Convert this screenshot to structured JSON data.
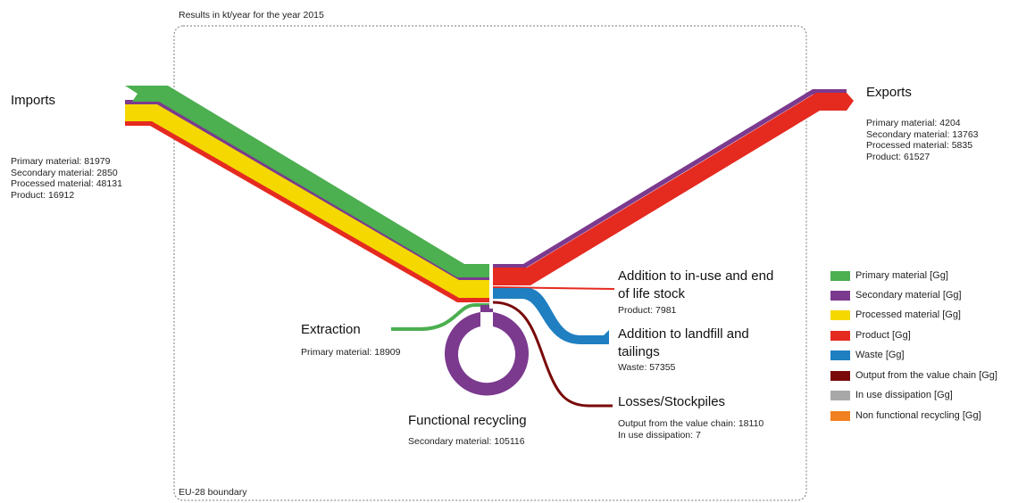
{
  "header": {
    "results_note": "Results in kt/year for the year 2015"
  },
  "boundary": {
    "label": "EU-28 boundary"
  },
  "colors": {
    "primary": "#4caf50",
    "secondary": "#7b3a8e",
    "processed": "#f5d800",
    "product": "#e52a20",
    "waste": "#1f7fc1",
    "output": "#7a0a0a",
    "in_use": "#a8a8a8",
    "non_functional": "#f08020"
  },
  "imports": {
    "title": "Imports",
    "lines": [
      "Primary material: 81979",
      "Secondary material: 2850",
      "Processed material: 48131",
      "Product: 16912"
    ]
  },
  "exports": {
    "title": "Exports",
    "lines": [
      "Primary material: 4204",
      "Secondary material: 13763",
      "Processed material: 5835",
      "Product: 61527"
    ]
  },
  "extraction": {
    "title": "Extraction",
    "lines": [
      "Primary material: 18909"
    ]
  },
  "recycling": {
    "title": "Functional recycling",
    "lines": [
      "Secondary material: 105116"
    ]
  },
  "stock": {
    "title_line1": "Addition to in-use and end",
    "title_line2": "of life stock",
    "lines": [
      "Product: 7981"
    ]
  },
  "landfill": {
    "title_line1": "Addition to landfill and",
    "title_line2": "tailings",
    "lines": [
      "Waste: 57355"
    ]
  },
  "losses": {
    "title": "Losses/Stockpiles",
    "lines": [
      "Output from the value chain: 18110",
      "In use dissipation: 7"
    ]
  },
  "legend": [
    {
      "label": "Primary material [Gg]",
      "color": "#4caf50"
    },
    {
      "label": "Secondary material [Gg]",
      "color": "#7b3a8e"
    },
    {
      "label": "Processed material [Gg]",
      "color": "#f5d800"
    },
    {
      "label": "Product [Gg]",
      "color": "#e52a20"
    },
    {
      "label": "Waste [Gg]",
      "color": "#1f7fc1"
    },
    {
      "label": "Output from the value chain [Gg]",
      "color": "#7a0a0a"
    },
    {
      "label": "In use dissipation [Gg]",
      "color": "#a8a8a8"
    },
    {
      "label": "Non functional recycling [Gg]",
      "color": "#f08020"
    }
  ]
}
